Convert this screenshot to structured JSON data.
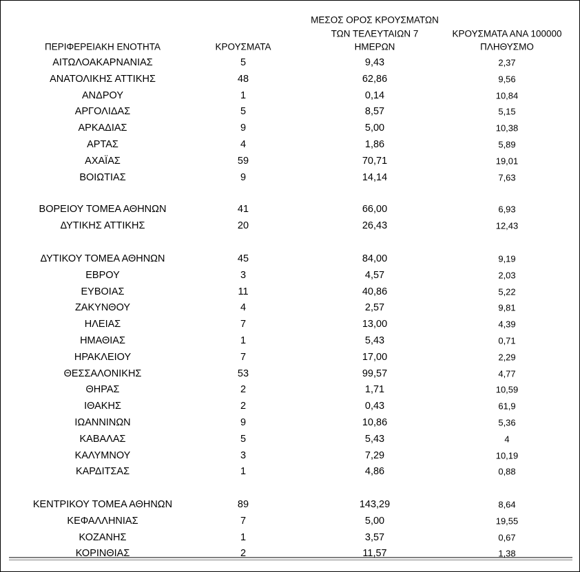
{
  "table": {
    "header": [
      [
        "ΠΕΡΙΦΕΡΕΙΑΚΗ ΕΝΟΤΗΤΑ"
      ],
      [
        "ΚΡΟΥΣΜΑΤΑ"
      ],
      [
        "ΜΕΣΟΣ ΟΡΟΣ ΚΡΟΥΣΜΑΤΩΝ",
        "ΤΩΝ ΤΕΛΕΥΤΑΙΩΝ 7",
        "ΗΜΕΡΩΝ"
      ],
      [
        "ΚΡΟΥΣΜΑΤΑ ΑΝΑ 100000",
        "ΠΛΗΘΥΣΜΟ"
      ]
    ],
    "groups": [
      {
        "rows": [
          [
            "ΑΙΤΩΛΟΑΚΑΡΝΑΝΙΑΣ",
            "5",
            "9,43",
            "2,37"
          ],
          [
            "ΑΝΑΤΟΛΙΚΗΣ ΑΤΤΙΚΗΣ",
            "48",
            "62,86",
            "9,56"
          ],
          [
            "ΑΝΔΡΟΥ",
            "1",
            "0,14",
            "10,84"
          ],
          [
            "ΑΡΓΟΛΙΔΑΣ",
            "5",
            "8,57",
            "5,15"
          ],
          [
            "ΑΡΚΑΔΙΑΣ",
            "9",
            "5,00",
            "10,38"
          ],
          [
            "ΑΡΤΑΣ",
            "4",
            "1,86",
            "5,89"
          ],
          [
            "ΑΧΑΪΑΣ",
            "59",
            "70,71",
            "19,01"
          ],
          [
            "ΒΟΙΩΤΙΑΣ",
            "9",
            "14,14",
            "7,63"
          ]
        ]
      },
      {
        "rows": [
          [
            "ΒΟΡΕΙΟΥ ΤΟΜΕΑ ΑΘΗΝΩΝ",
            "41",
            "66,00",
            "6,93"
          ],
          [
            "ΔΥΤΙΚΗΣ ΑΤΤΙΚΗΣ",
            "20",
            "26,43",
            "12,43"
          ]
        ]
      },
      {
        "rows": [
          [
            "ΔΥΤΙΚΟΥ ΤΟΜΕΑ ΑΘΗΝΩΝ",
            "45",
            "84,00",
            "9,19"
          ],
          [
            "ΕΒΡΟΥ",
            "3",
            "4,57",
            "2,03"
          ],
          [
            "ΕΥΒΟΙΑΣ",
            "11",
            "40,86",
            "5,22"
          ],
          [
            "ΖΑΚΥΝΘΟΥ",
            "4",
            "2,57",
            "9,81"
          ],
          [
            "ΗΛΕΙΑΣ",
            "7",
            "13,00",
            "4,39"
          ],
          [
            "ΗΜΑΘΙΑΣ",
            "1",
            "5,43",
            "0,71"
          ],
          [
            "ΗΡΑΚΛΕΙΟΥ",
            "7",
            "17,00",
            "2,29"
          ],
          [
            "ΘΕΣΣΑΛΟΝΙΚΗΣ",
            "53",
            "99,57",
            "4,77"
          ],
          [
            "ΘΗΡΑΣ",
            "2",
            "1,71",
            "10,59"
          ],
          [
            "ΙΘΑΚΗΣ",
            "2",
            "0,43",
            "61,9"
          ],
          [
            "ΙΩΑΝΝΙΝΩΝ",
            "9",
            "10,86",
            "5,36"
          ],
          [
            "ΚΑΒΑΛΑΣ",
            "5",
            "5,43",
            "4"
          ],
          [
            "ΚΑΛΥΜΝΟΥ",
            "3",
            "7,29",
            "10,19"
          ],
          [
            "ΚΑΡΔΙΤΣΑΣ",
            "1",
            "4,86",
            "0,88"
          ]
        ]
      },
      {
        "rows": [
          [
            "ΚΕΝΤΡΙΚΟΥ ΤΟΜΕΑ ΑΘΗΝΩΝ",
            "89",
            "143,29",
            "8,64"
          ],
          [
            "ΚΕΦΑΛΛΗΝΙΑΣ",
            "7",
            "5,00",
            "19,55"
          ],
          [
            "ΚΟΖΑΝΗΣ",
            "1",
            "3,57",
            "0,67"
          ],
          [
            "ΚΟΡΙΝΘΙΑΣ",
            "2",
            "11,57",
            "1,38"
          ]
        ]
      }
    ]
  }
}
